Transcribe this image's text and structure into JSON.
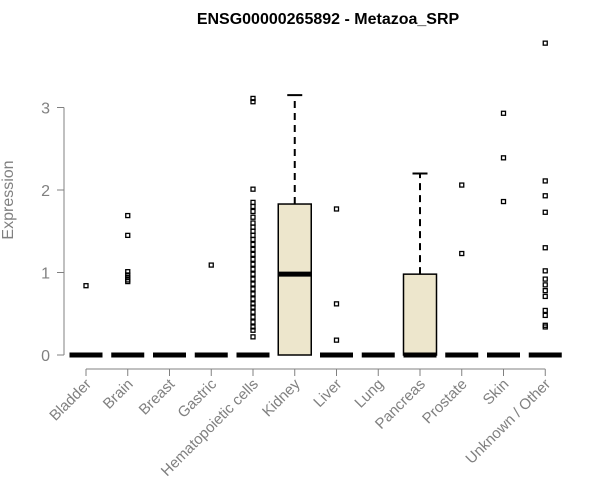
{
  "chart_data": {
    "type": "boxplot",
    "title": "ENSG00000265892 - Metazoa_SRP",
    "xlabel": "",
    "ylabel": "Expression",
    "ylim": [
      0,
      3.8
    ],
    "yticks": [
      0,
      1,
      2,
      3
    ],
    "grid": false,
    "legend": "none",
    "box_fill": "#ede6cc",
    "outlier_style": "open-square",
    "categories": [
      "Bladder",
      "Brain",
      "Breast",
      "Gastric",
      "Hematopoietic cells",
      "Kidney",
      "Liver",
      "Lung",
      "Pancreas",
      "Prostate",
      "Skin",
      "Unknown / Other"
    ],
    "boxes": [
      {
        "category": "Bladder",
        "q1": 0,
        "median": 0,
        "q3": 0,
        "whisker_low": 0,
        "whisker_high": 0,
        "outliers": [
          0.84
        ]
      },
      {
        "category": "Brain",
        "q1": 0,
        "median": 0,
        "q3": 0,
        "whisker_low": 0,
        "whisker_high": 0,
        "outliers": [
          1.69,
          1.45,
          1.01,
          0.97,
          0.94,
          0.91,
          0.89
        ]
      },
      {
        "category": "Breast",
        "q1": 0,
        "median": 0,
        "q3": 0,
        "whisker_low": 0,
        "whisker_high": 0,
        "outliers": []
      },
      {
        "category": "Gastric",
        "q1": 0,
        "median": 0,
        "q3": 0,
        "whisker_low": 0,
        "whisker_high": 0,
        "outliers": [
          1.09
        ]
      },
      {
        "category": "Hematopoietic cells",
        "q1": 0,
        "median": 0,
        "q3": 0,
        "whisker_low": 0,
        "whisker_high": 0,
        "outliers": [
          3.11,
          3.07,
          2.01,
          1.85,
          1.8,
          1.74,
          1.67,
          1.6,
          1.55,
          1.5,
          1.45,
          1.4,
          1.34,
          1.28,
          1.22,
          1.16,
          1.1,
          1.04,
          0.98,
          0.92,
          0.86,
          0.8,
          0.74,
          0.68,
          0.62,
          0.58,
          0.52,
          0.46,
          0.4,
          0.34,
          0.3,
          0.22
        ]
      },
      {
        "category": "Kidney",
        "q1": 0,
        "median": 0.98,
        "q3": 1.83,
        "whisker_low": 0,
        "whisker_high": 3.15,
        "outliers": []
      },
      {
        "category": "Liver",
        "q1": 0,
        "median": 0,
        "q3": 0,
        "whisker_low": 0,
        "whisker_high": 0,
        "outliers": [
          1.77,
          0.62,
          0.18
        ]
      },
      {
        "category": "Lung",
        "q1": 0,
        "median": 0,
        "q3": 0,
        "whisker_low": 0,
        "whisker_high": 0,
        "outliers": []
      },
      {
        "category": "Pancreas",
        "q1": 0,
        "median": 0,
        "q3": 0.98,
        "whisker_low": 0,
        "whisker_high": 2.2,
        "outliers": []
      },
      {
        "category": "Prostate",
        "q1": 0,
        "median": 0,
        "q3": 0,
        "whisker_low": 0,
        "whisker_high": 0,
        "outliers": [
          2.06,
          1.23
        ]
      },
      {
        "category": "Skin",
        "q1": 0,
        "median": 0,
        "q3": 0,
        "whisker_low": 0,
        "whisker_high": 0,
        "outliers": [
          2.93,
          2.39,
          1.86
        ]
      },
      {
        "category": "Unknown / Other",
        "q1": 0,
        "median": 0,
        "q3": 0,
        "whisker_low": 0,
        "whisker_high": 0,
        "outliers": [
          3.78,
          2.11,
          1.93,
          1.73,
          1.3,
          1.02,
          0.92,
          0.85,
          0.78,
          0.71,
          0.54,
          0.48,
          0.36,
          0.34
        ]
      }
    ]
  }
}
